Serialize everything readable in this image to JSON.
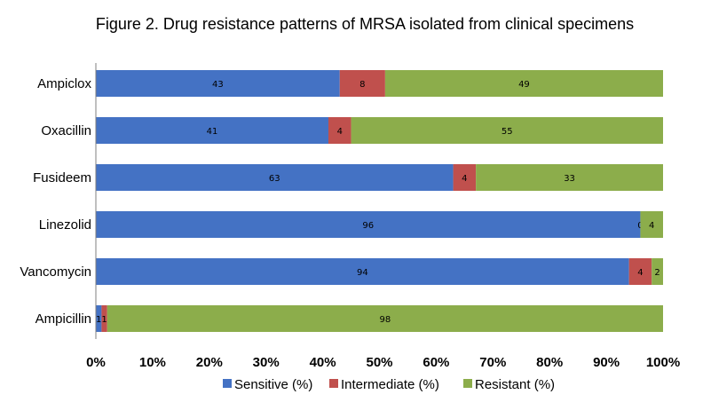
{
  "chart_data": {
    "type": "bar",
    "orientation": "horizontal",
    "stacked": "percent",
    "title": "Figure 2. Drug resistance patterns of MRSA isolated from clinical specimens",
    "categories": [
      "Ampiclox",
      "Oxacillin",
      "Fusideem",
      "Linezolid",
      "Vancomycin",
      "Ampicillin"
    ],
    "series": [
      {
        "name": "Sensitive (%)",
        "color": "#4472C4",
        "values": [
          43,
          41,
          63,
          96,
          94,
          1
        ]
      },
      {
        "name": "Intermediate (%)",
        "color": "#C0504D",
        "values": [
          8,
          4,
          4,
          0,
          4,
          1
        ]
      },
      {
        "name": "Resistant (%)",
        "color": "#8CAD4B",
        "values": [
          49,
          55,
          33,
          4,
          2,
          98
        ]
      }
    ],
    "xlim": [
      0,
      100
    ],
    "xticks": [
      "0%",
      "10%",
      "20%",
      "30%",
      "40%",
      "50%",
      "60%",
      "70%",
      "80%",
      "90%",
      "100%"
    ],
    "grid": false,
    "legend_position": "bottom"
  }
}
